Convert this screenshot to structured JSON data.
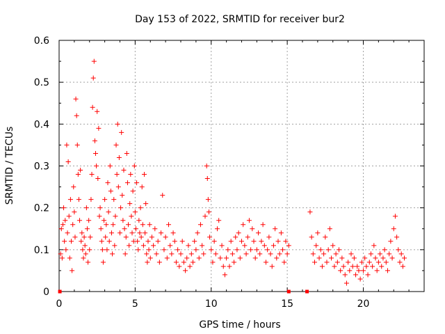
{
  "chart_data": {
    "type": "scatter",
    "title": "Day 153 of 2022, SRMTID for receiver bur2",
    "xlabel": "GPS time / hours",
    "ylabel": "SRMTID / TECUs",
    "xlim": [
      0,
      24
    ],
    "ylim": [
      0,
      0.6
    ],
    "xticks": [
      0,
      5,
      10,
      15,
      20
    ],
    "yticks": [
      0,
      0.1,
      0.2,
      0.3,
      0.4,
      0.5,
      0.6
    ],
    "xtick_labels": [
      "0",
      "5",
      "10",
      "15",
      "20"
    ],
    "ytick_labels": [
      "0",
      "0.1",
      "0.2",
      "0.3",
      "0.4",
      "0.5",
      "0.6"
    ],
    "grid": true,
    "marker": "+",
    "color": "#ff0000",
    "gaps_hours": [
      [
        15.2,
        16.4
      ]
    ],
    "data_range_hours": [
      0.0,
      22.7
    ],
    "zero_markers_x": [
      0.05,
      15.1,
      16.3
    ],
    "series": [
      {
        "name": "SRMTID",
        "points": [
          [
            0.1,
            0.09
          ],
          [
            0.15,
            0.15
          ],
          [
            0.2,
            0.08
          ],
          [
            0.25,
            0.16
          ],
          [
            0.3,
            0.2
          ],
          [
            0.35,
            0.12
          ],
          [
            0.4,
            0.17
          ],
          [
            0.45,
            0.1
          ],
          [
            0.5,
            0.35
          ],
          [
            0.55,
            0.14
          ],
          [
            0.6,
            0.31
          ],
          [
            0.65,
            0.18
          ],
          [
            0.7,
            0.08
          ],
          [
            0.75,
            0.22
          ],
          [
            0.8,
            0.12
          ],
          [
            0.85,
            0.05
          ],
          [
            0.9,
            0.16
          ],
          [
            0.95,
            0.25
          ],
          [
            1.0,
            0.19
          ],
          [
            1.05,
            0.13
          ],
          [
            1.1,
            0.46
          ],
          [
            1.15,
            0.42
          ],
          [
            1.2,
            0.35
          ],
          [
            1.25,
            0.28
          ],
          [
            1.3,
            0.22
          ],
          [
            1.35,
            0.17
          ],
          [
            1.4,
            0.29
          ],
          [
            1.45,
            0.12
          ],
          [
            1.5,
            0.14
          ],
          [
            1.55,
            0.1
          ],
          [
            1.6,
            0.08
          ],
          [
            1.65,
            0.13
          ],
          [
            1.7,
            0.11
          ],
          [
            1.75,
            0.09
          ],
          [
            1.8,
            0.2
          ],
          [
            1.85,
            0.15
          ],
          [
            1.9,
            0.07
          ],
          [
            1.95,
            0.17
          ],
          [
            2.0,
            0.1
          ],
          [
            2.05,
            0.13
          ],
          [
            2.1,
            0.22
          ],
          [
            2.15,
            0.28
          ],
          [
            2.2,
            0.44
          ],
          [
            2.25,
            0.51
          ],
          [
            2.3,
            0.55
          ],
          [
            2.35,
            0.36
          ],
          [
            2.4,
            0.33
          ],
          [
            2.45,
            0.3
          ],
          [
            2.5,
            0.43
          ],
          [
            2.55,
            0.27
          ],
          [
            2.6,
            0.39
          ],
          [
            2.65,
            0.18
          ],
          [
            2.7,
            0.2
          ],
          [
            2.75,
            0.15
          ],
          [
            2.8,
            0.12
          ],
          [
            2.85,
            0.1
          ],
          [
            2.9,
            0.07
          ],
          [
            2.95,
            0.17
          ],
          [
            3.0,
            0.22
          ],
          [
            3.05,
            0.13
          ],
          [
            3.1,
            0.16
          ],
          [
            3.15,
            0.1
          ],
          [
            3.2,
            0.26
          ],
          [
            3.25,
            0.19
          ],
          [
            3.3,
            0.12
          ],
          [
            3.35,
            0.3
          ],
          [
            3.4,
            0.24
          ],
          [
            3.45,
            0.14
          ],
          [
            3.5,
            0.09
          ],
          [
            3.55,
            0.16
          ],
          [
            3.6,
            0.22
          ],
          [
            3.65,
            0.11
          ],
          [
            3.7,
            0.18
          ],
          [
            3.75,
            0.35
          ],
          [
            3.8,
            0.28
          ],
          [
            3.85,
            0.4
          ],
          [
            3.9,
            0.25
          ],
          [
            3.95,
            0.32
          ],
          [
            4.0,
            0.14
          ],
          [
            4.05,
            0.2
          ],
          [
            4.1,
            0.38
          ],
          [
            4.15,
            0.23
          ],
          [
            4.2,
            0.17
          ],
          [
            4.25,
            0.29
          ],
          [
            4.3,
            0.15
          ],
          [
            4.35,
            0.09
          ],
          [
            4.4,
            0.13
          ],
          [
            4.45,
            0.33
          ],
          [
            4.5,
            0.26
          ],
          [
            4.55,
            0.16
          ],
          [
            4.6,
            0.11
          ],
          [
            4.65,
            0.21
          ],
          [
            4.7,
            0.28
          ],
          [
            4.75,
            0.18
          ],
          [
            4.8,
            0.14
          ],
          [
            4.85,
            0.24
          ],
          [
            4.9,
            0.12
          ],
          [
            4.95,
            0.3
          ],
          [
            5.0,
            0.19
          ],
          [
            5.05,
            0.15
          ],
          [
            5.1,
            0.26
          ],
          [
            5.15,
            0.12
          ],
          [
            5.2,
            0.1
          ],
          [
            5.25,
            0.17
          ],
          [
            5.3,
            0.14
          ],
          [
            5.35,
            0.2
          ],
          [
            5.4,
            0.13
          ],
          [
            5.45,
            0.25
          ],
          [
            5.5,
            0.16
          ],
          [
            5.55,
            0.11
          ],
          [
            5.6,
            0.28
          ],
          [
            5.65,
            0.14
          ],
          [
            5.7,
            0.21
          ],
          [
            5.75,
            0.09
          ],
          [
            5.8,
            0.07
          ],
          [
            5.85,
            0.12
          ],
          [
            5.9,
            0.1
          ],
          [
            5.95,
            0.16
          ],
          [
            6.0,
            0.08
          ],
          [
            6.1,
            0.13
          ],
          [
            6.2,
            0.11
          ],
          [
            6.3,
            0.15
          ],
          [
            6.4,
            0.09
          ],
          [
            6.5,
            0.12
          ],
          [
            6.6,
            0.07
          ],
          [
            6.7,
            0.14
          ],
          [
            6.8,
            0.23
          ],
          [
            6.9,
            0.1
          ],
          [
            7.0,
            0.13
          ],
          [
            7.1,
            0.08
          ],
          [
            7.2,
            0.16
          ],
          [
            7.3,
            0.11
          ],
          [
            7.4,
            0.09
          ],
          [
            7.5,
            0.14
          ],
          [
            7.6,
            0.12
          ],
          [
            7.7,
            0.07
          ],
          [
            7.8,
            0.1
          ],
          [
            7.9,
            0.06
          ],
          [
            8.0,
            0.09
          ],
          [
            8.1,
            0.12
          ],
          [
            8.2,
            0.07
          ],
          [
            8.3,
            0.05
          ],
          [
            8.4,
            0.08
          ],
          [
            8.5,
            0.11
          ],
          [
            8.6,
            0.06
          ],
          [
            8.7,
            0.09
          ],
          [
            8.8,
            0.07
          ],
          [
            8.9,
            0.12
          ],
          [
            9.0,
            0.1
          ],
          [
            9.1,
            0.14
          ],
          [
            9.2,
            0.08
          ],
          [
            9.3,
            0.16
          ],
          [
            9.4,
            0.11
          ],
          [
            9.5,
            0.09
          ],
          [
            9.6,
            0.18
          ],
          [
            9.7,
            0.3
          ],
          [
            9.75,
            0.27
          ],
          [
            9.8,
            0.22
          ],
          [
            9.85,
            0.19
          ],
          [
            9.9,
            0.13
          ],
          [
            10.0,
            0.1
          ],
          [
            10.1,
            0.07
          ],
          [
            10.2,
            0.12
          ],
          [
            10.3,
            0.09
          ],
          [
            10.4,
            0.15
          ],
          [
            10.5,
            0.17
          ],
          [
            10.6,
            0.08
          ],
          [
            10.7,
            0.11
          ],
          [
            10.8,
            0.06
          ],
          [
            10.9,
            0.04
          ],
          [
            11.0,
            0.08
          ],
          [
            11.1,
            0.1
          ],
          [
            11.2,
            0.06
          ],
          [
            11.3,
            0.12
          ],
          [
            11.4,
            0.09
          ],
          [
            11.5,
            0.07
          ],
          [
            11.6,
            0.13
          ],
          [
            11.7,
            0.1
          ],
          [
            11.8,
            0.14
          ],
          [
            11.9,
            0.08
          ],
          [
            12.0,
            0.12
          ],
          [
            12.1,
            0.16
          ],
          [
            12.2,
            0.11
          ],
          [
            12.3,
            0.09
          ],
          [
            12.4,
            0.13
          ],
          [
            12.5,
            0.17
          ],
          [
            12.6,
            0.1
          ],
          [
            12.7,
            0.15
          ],
          [
            12.8,
            0.12
          ],
          [
            12.9,
            0.08
          ],
          [
            13.0,
            0.1
          ],
          [
            13.1,
            0.14
          ],
          [
            13.2,
            0.09
          ],
          [
            13.3,
            0.12
          ],
          [
            13.4,
            0.16
          ],
          [
            13.5,
            0.11
          ],
          [
            13.6,
            0.07
          ],
          [
            13.7,
            0.1
          ],
          [
            13.8,
            0.13
          ],
          [
            13.9,
            0.09
          ],
          [
            14.0,
            0.06
          ],
          [
            14.1,
            0.11
          ],
          [
            14.2,
            0.15
          ],
          [
            14.3,
            0.08
          ],
          [
            14.4,
            0.12
          ],
          [
            14.5,
            0.09
          ],
          [
            14.6,
            0.14
          ],
          [
            14.7,
            0.1
          ],
          [
            14.8,
            0.07
          ],
          [
            14.9,
            0.12
          ],
          [
            15.0,
            0.09
          ],
          [
            15.1,
            0.11
          ],
          [
            16.5,
            0.19
          ],
          [
            16.6,
            0.13
          ],
          [
            16.7,
            0.09
          ],
          [
            16.8,
            0.07
          ],
          [
            16.9,
            0.11
          ],
          [
            17.0,
            0.14
          ],
          [
            17.1,
            0.08
          ],
          [
            17.2,
            0.1
          ],
          [
            17.3,
            0.06
          ],
          [
            17.4,
            0.09
          ],
          [
            17.5,
            0.13
          ],
          [
            17.6,
            0.07
          ],
          [
            17.7,
            0.1
          ],
          [
            17.8,
            0.15
          ],
          [
            17.9,
            0.08
          ],
          [
            18.0,
            0.11
          ],
          [
            18.1,
            0.06
          ],
          [
            18.2,
            0.09
          ],
          [
            18.3,
            0.07
          ],
          [
            18.4,
            0.1
          ],
          [
            18.5,
            0.05
          ],
          [
            18.6,
            0.08
          ],
          [
            18.7,
            0.06
          ],
          [
            18.8,
            0.04
          ],
          [
            18.9,
            0.02
          ],
          [
            19.0,
            0.07
          ],
          [
            19.1,
            0.05
          ],
          [
            19.2,
            0.09
          ],
          [
            19.3,
            0.06
          ],
          [
            19.4,
            0.08
          ],
          [
            19.5,
            0.04
          ],
          [
            19.6,
            0.06
          ],
          [
            19.7,
            0.05
          ],
          [
            19.8,
            0.03
          ],
          [
            19.9,
            0.07
          ],
          [
            20.0,
            0.05
          ],
          [
            20.1,
            0.08
          ],
          [
            20.2,
            0.06
          ],
          [
            20.3,
            0.04
          ],
          [
            20.4,
            0.07
          ],
          [
            20.5,
            0.09
          ],
          [
            20.6,
            0.06
          ],
          [
            20.7,
            0.11
          ],
          [
            20.8,
            0.08
          ],
          [
            20.9,
            0.05
          ],
          [
            21.0,
            0.07
          ],
          [
            21.1,
            0.09
          ],
          [
            21.2,
            0.06
          ],
          [
            21.3,
            0.08
          ],
          [
            21.4,
            0.1
          ],
          [
            21.5,
            0.07
          ],
          [
            21.6,
            0.05
          ],
          [
            21.7,
            0.09
          ],
          [
            21.8,
            0.12
          ],
          [
            21.9,
            0.08
          ],
          [
            22.0,
            0.15
          ],
          [
            22.1,
            0.18
          ],
          [
            22.2,
            0.13
          ],
          [
            22.3,
            0.1
          ],
          [
            22.4,
            0.07
          ],
          [
            22.5,
            0.09
          ],
          [
            22.6,
            0.06
          ],
          [
            22.7,
            0.08
          ]
        ]
      }
    ]
  }
}
